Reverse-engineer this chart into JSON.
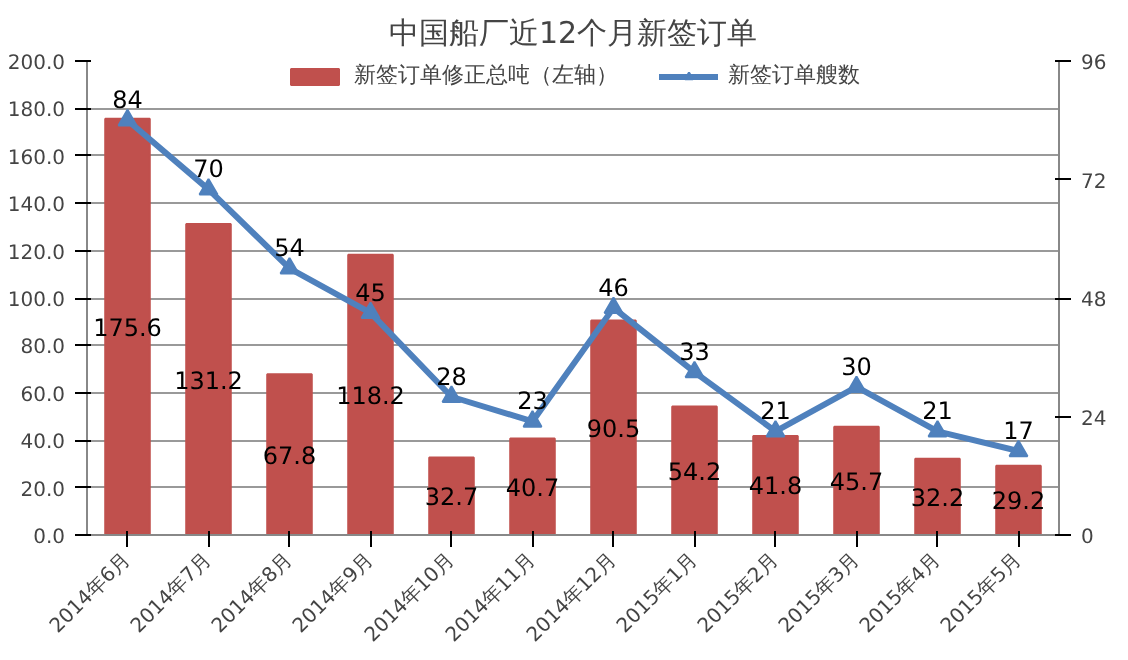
{
  "chart_data": {
    "type": "bar",
    "title": "中国船厂近12个月新签订单",
    "categories": [
      "2014年6月",
      "2014年7月",
      "2014年8月",
      "2014年9月",
      "2014年10月",
      "2014年11月",
      "2014年12月",
      "2015年1月",
      "2015年2月",
      "2015年3月",
      "2015年4月",
      "2015年5月"
    ],
    "series": [
      {
        "name": "新签订单修正总吨（左轴）",
        "color": "#c0504d",
        "values": [
          175.6,
          131.2,
          67.8,
          118.2,
          32.7,
          40.7,
          90.5,
          54.2,
          41.8,
          45.7,
          32.2,
          29.2
        ]
      },
      {
        "name": "新签订单艘数",
        "type": "line",
        "axis": "y2",
        "color": "#4f81bd",
        "marker": "triangle",
        "values": [
          84,
          70,
          54,
          45,
          28,
          23,
          46,
          33,
          21,
          30,
          21,
          17
        ]
      }
    ],
    "ylim": [
      0,
      200
    ],
    "yticks": [
      {
        "value": 0,
        "label": "0.0"
      },
      {
        "value": 20,
        "label": "20.0"
      },
      {
        "value": 40,
        "label": "40.0"
      },
      {
        "value": 60,
        "label": "60.0"
      },
      {
        "value": 80,
        "label": "80.0"
      },
      {
        "value": 100,
        "label": "100.0"
      },
      {
        "value": 120,
        "label": "120.0"
      },
      {
        "value": 140,
        "label": "140.0"
      },
      {
        "value": 160,
        "label": "160.0"
      },
      {
        "value": 180,
        "label": "180.0"
      },
      {
        "value": 200,
        "label": "200.0"
      }
    ],
    "y2lim": [
      0,
      96
    ],
    "y2ticks": [
      0,
      24,
      48,
      72,
      96
    ],
    "grid": "y",
    "legend": "top",
    "data_labels": true
  }
}
